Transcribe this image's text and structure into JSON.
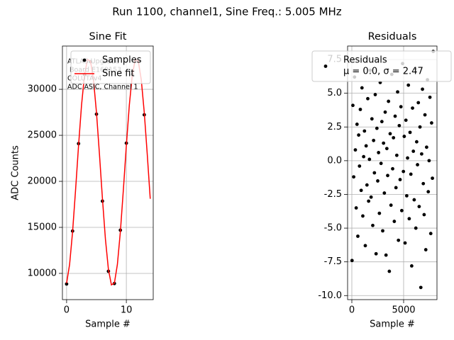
{
  "figure_title": "Run 1100, channel1, Sine Freq.: 5.005 MHz",
  "chart_data": [
    {
      "type": "line",
      "title": "Sine Fit",
      "xlabel": "Sample #",
      "ylabel": "ADC Counts",
      "xlim": [
        -0.7,
        14.5
      ],
      "ylim": [
        7150,
        34700
      ],
      "xticks": [
        0,
        10
      ],
      "yticks": [
        10000,
        15000,
        20000,
        25000,
        30000
      ],
      "grid": true,
      "legend": "upper right",
      "annotation": [
        "ATLAS Upgrade",
        " Board E169153",
        "COLUTAv4",
        "ADC ASIC, Channel 1"
      ],
      "series": [
        {
          "name": "Samples",
          "color": "#000000",
          "marker": true,
          "x": [
            0,
            1,
            2,
            3,
            4,
            5,
            6,
            7,
            8,
            9,
            10,
            11,
            12,
            13
          ],
          "values": [
            8850,
            14600,
            24100,
            31600,
            33000,
            27300,
            17850,
            10230,
            8900,
            14700,
            24150,
            31600,
            33050,
            27230
          ]
        },
        {
          "name": "Sine fit",
          "color": "#ff0000",
          "marker": false,
          "x": [
            0,
            0.5,
            1,
            1.5,
            2,
            2.5,
            3,
            3.5,
            4,
            4.5,
            5,
            5.5,
            6,
            6.5,
            7,
            7.5,
            8,
            8.5,
            9,
            9.5,
            10,
            10.5,
            11,
            11.5,
            12,
            12.5,
            13,
            13.5,
            14
          ],
          "values": [
            8942,
            10968,
            14521,
            19060,
            23894,
            28289,
            31572,
            33247,
            33058,
            31032,
            27479,
            22940,
            18106,
            13711,
            10428,
            8753,
            8942,
            10968,
            14521,
            19060,
            23894,
            28289,
            31572,
            33247,
            33058,
            31032,
            27479,
            22940,
            18106
          ]
        }
      ]
    },
    {
      "type": "scatter",
      "title": "Residuals",
      "xlabel": "Sample #",
      "xlim": [
        -410,
        8220
      ],
      "ylim": [
        -10.3,
        8.5
      ],
      "xticks": [
        0,
        5000
      ],
      "yticks": [
        {
          "value": -10,
          "label": "-10.0"
        },
        {
          "value": -7.5,
          "label": "-7.5"
        },
        {
          "value": -5,
          "label": "-5.0"
        },
        {
          "value": -2.5,
          "label": "-2.5"
        },
        {
          "value": 0,
          "label": "0.0"
        },
        2.5,
        {
          "value": 5,
          "label": "5.0"
        },
        7.5
      ],
      "grid": true,
      "legend": "upper right",
      "legend_note": "μ = 0.0, σ = 2.47",
      "series": [
        {
          "name": "Residuals",
          "color": "#000000",
          "x": [
            20,
            100,
            180,
            260,
            340,
            420,
            500,
            580,
            660,
            740,
            820,
            900,
            980,
            1060,
            1140,
            1220,
            1300,
            1380,
            1460,
            1540,
            1620,
            1700,
            1780,
            1860,
            1940,
            2020,
            2100,
            2180,
            2260,
            2340,
            2420,
            2500,
            2580,
            2660,
            2740,
            2820,
            2900,
            2980,
            3060,
            3140,
            3220,
            3300,
            3380,
            3460,
            3540,
            3620,
            3700,
            3780,
            3860,
            3940,
            4020,
            4100,
            4180,
            4260,
            4340,
            4420,
            4500,
            4580,
            4660,
            4740,
            4820,
            4900,
            4980,
            5060,
            5140,
            5220,
            5300,
            5380,
            5460,
            5540,
            5620,
            5700,
            5780,
            5860,
            5940,
            6020,
            6100,
            6180,
            6260,
            6340,
            6420,
            6500,
            6580,
            6660,
            6740,
            6820,
            6900,
            6980,
            7060,
            7140,
            7220,
            7300,
            7380,
            7460,
            7540,
            7620,
            7700,
            7780,
            7860
          ],
          "values": [
            -7.4,
            4.1,
            -1.2,
            6.2,
            0.8,
            -3.5,
            2.7,
            -5.6,
            1.9,
            -0.4,
            3.8,
            -2.2,
            5.4,
            -4.1,
            0.3,
            2.2,
            -6.3,
            1.1,
            -1.8,
            4.6,
            -3.0,
            0.1,
            6.7,
            -2.7,
            3.1,
            -4.8,
            1.5,
            -0.9,
            4.9,
            -6.9,
            2.4,
            -1.5,
            0.6,
            -3.9,
            5.8,
            -0.2,
            2.9,
            -5.2,
            1.3,
            -2.4,
            3.6,
            -7.0,
            0.9,
            -1.1,
            4.4,
            -8.2,
            2.0,
            -3.3,
            6.4,
            -0.6,
            1.7,
            -4.5,
            3.3,
            -2.0,
            0.4,
            5.1,
            -5.9,
            2.6,
            -1.4,
            4.0,
            -3.7,
            7.2,
            -0.8,
            1.8,
            -6.1,
            3.0,
            -2.6,
            0.2,
            5.6,
            -4.3,
            2.1,
            -1.0,
            -7.8,
            3.9,
            0.7,
            -2.9,
            6.8,
            -5.0,
            1.4,
            -0.3,
            4.3,
            -3.4,
            2.5,
            -9.4,
            0.5,
            5.3,
            -1.7,
            -4.0,
            3.4,
            -6.6,
            1.0,
            6.0,
            -2.3,
            0.0,
            4.7,
            -5.4,
            2.8,
            -1.3,
            8.1
          ]
        }
      ]
    }
  ]
}
